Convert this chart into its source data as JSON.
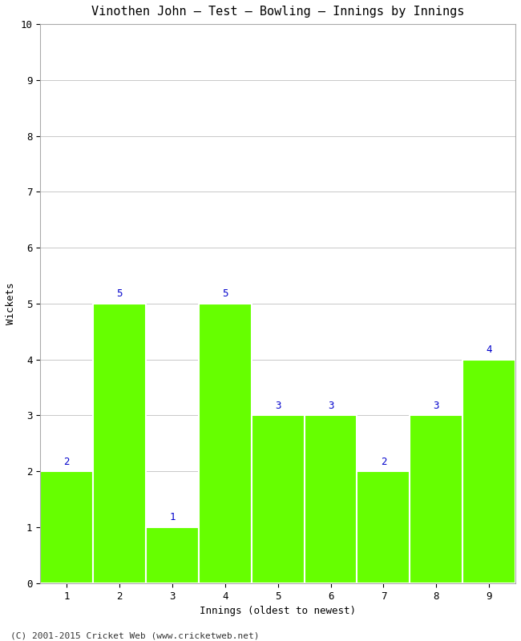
{
  "title": "Vinothen John – Test – Bowling – Innings by Innings",
  "xlabel": "Innings (oldest to newest)",
  "ylabel": "Wickets",
  "categories": [
    1,
    2,
    3,
    4,
    5,
    6,
    7,
    8,
    9
  ],
  "values": [
    2,
    5,
    1,
    5,
    3,
    3,
    2,
    3,
    4
  ],
  "bar_color": "#66ff00",
  "label_color": "#0000cc",
  "ylim": [
    0,
    10
  ],
  "yticks": [
    0,
    1,
    2,
    3,
    4,
    5,
    6,
    7,
    8,
    9,
    10
  ],
  "xticks": [
    1,
    2,
    3,
    4,
    5,
    6,
    7,
    8,
    9
  ],
  "grid_color": "#c8c8c8",
  "background_color": "#ffffff",
  "footer_text": "(C) 2001-2015 Cricket Web (www.cricketweb.net)",
  "title_fontsize": 11,
  "axis_label_fontsize": 9,
  "tick_fontsize": 9,
  "value_label_fontsize": 9,
  "footer_fontsize": 8
}
